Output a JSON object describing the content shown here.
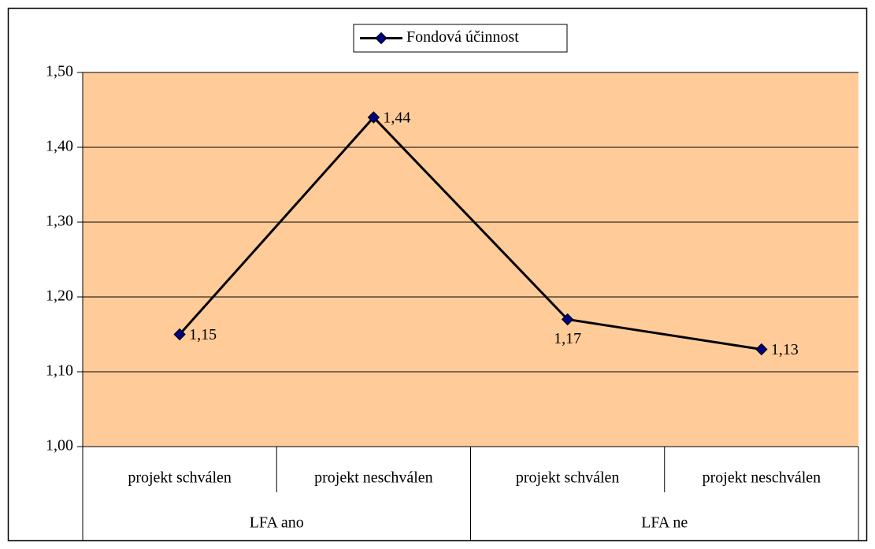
{
  "chart_data": {
    "type": "line",
    "categories": [
      "projekt schválen",
      "projekt neschválen",
      "projekt schválen",
      "projekt neschválen"
    ],
    "groups": [
      "LFA ano",
      "LFA ne"
    ],
    "series": [
      {
        "name": "Fondová účinnost",
        "color": "#000080",
        "line_color": "#000000",
        "values": [
          1.15,
          1.44,
          1.17,
          1.13
        ],
        "value_labels": [
          "1,15",
          "1,44",
          "1,17",
          "1,13"
        ]
      }
    ],
    "ylim": [
      1.0,
      1.5
    ],
    "yticks": [
      {
        "value": 1.0,
        "label": "1,00"
      },
      {
        "value": 1.1,
        "label": "1,10"
      },
      {
        "value": 1.2,
        "label": "1,20"
      },
      {
        "value": 1.3,
        "label": "1,30"
      },
      {
        "value": 1.4,
        "label": "1,40"
      },
      {
        "value": 1.5,
        "label": "1,50"
      }
    ],
    "grid": true,
    "plot_background": "#FFCC99",
    "legend": "top"
  }
}
